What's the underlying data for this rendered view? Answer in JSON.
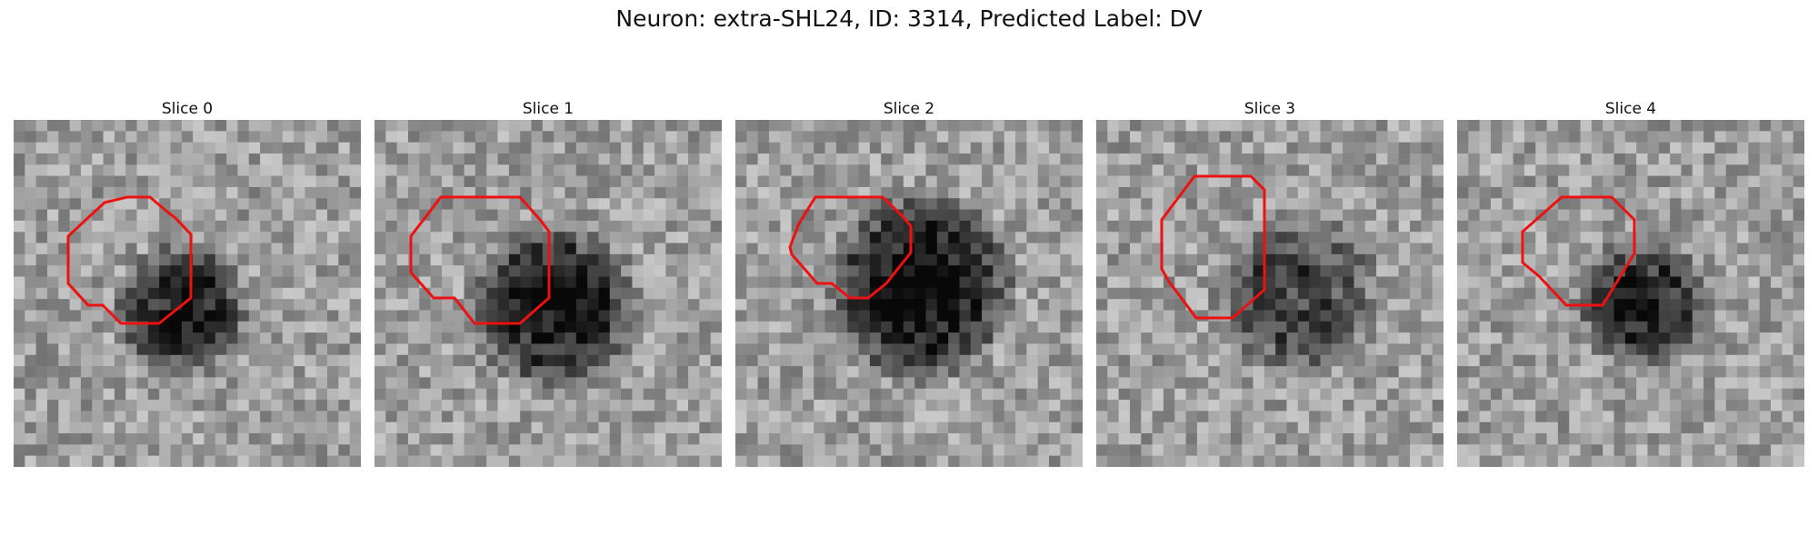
{
  "figure": {
    "title": "Neuron: extra-SHL24, ID: 3314, Predicted Label: DV"
  },
  "panels": [
    {
      "title": "Slice 0"
    },
    {
      "title": "Slice 1"
    },
    {
      "title": "Slice 2"
    },
    {
      "title": "Slice 3"
    },
    {
      "title": "Slice 4"
    }
  ],
  "contour_color": "#ee1111"
}
